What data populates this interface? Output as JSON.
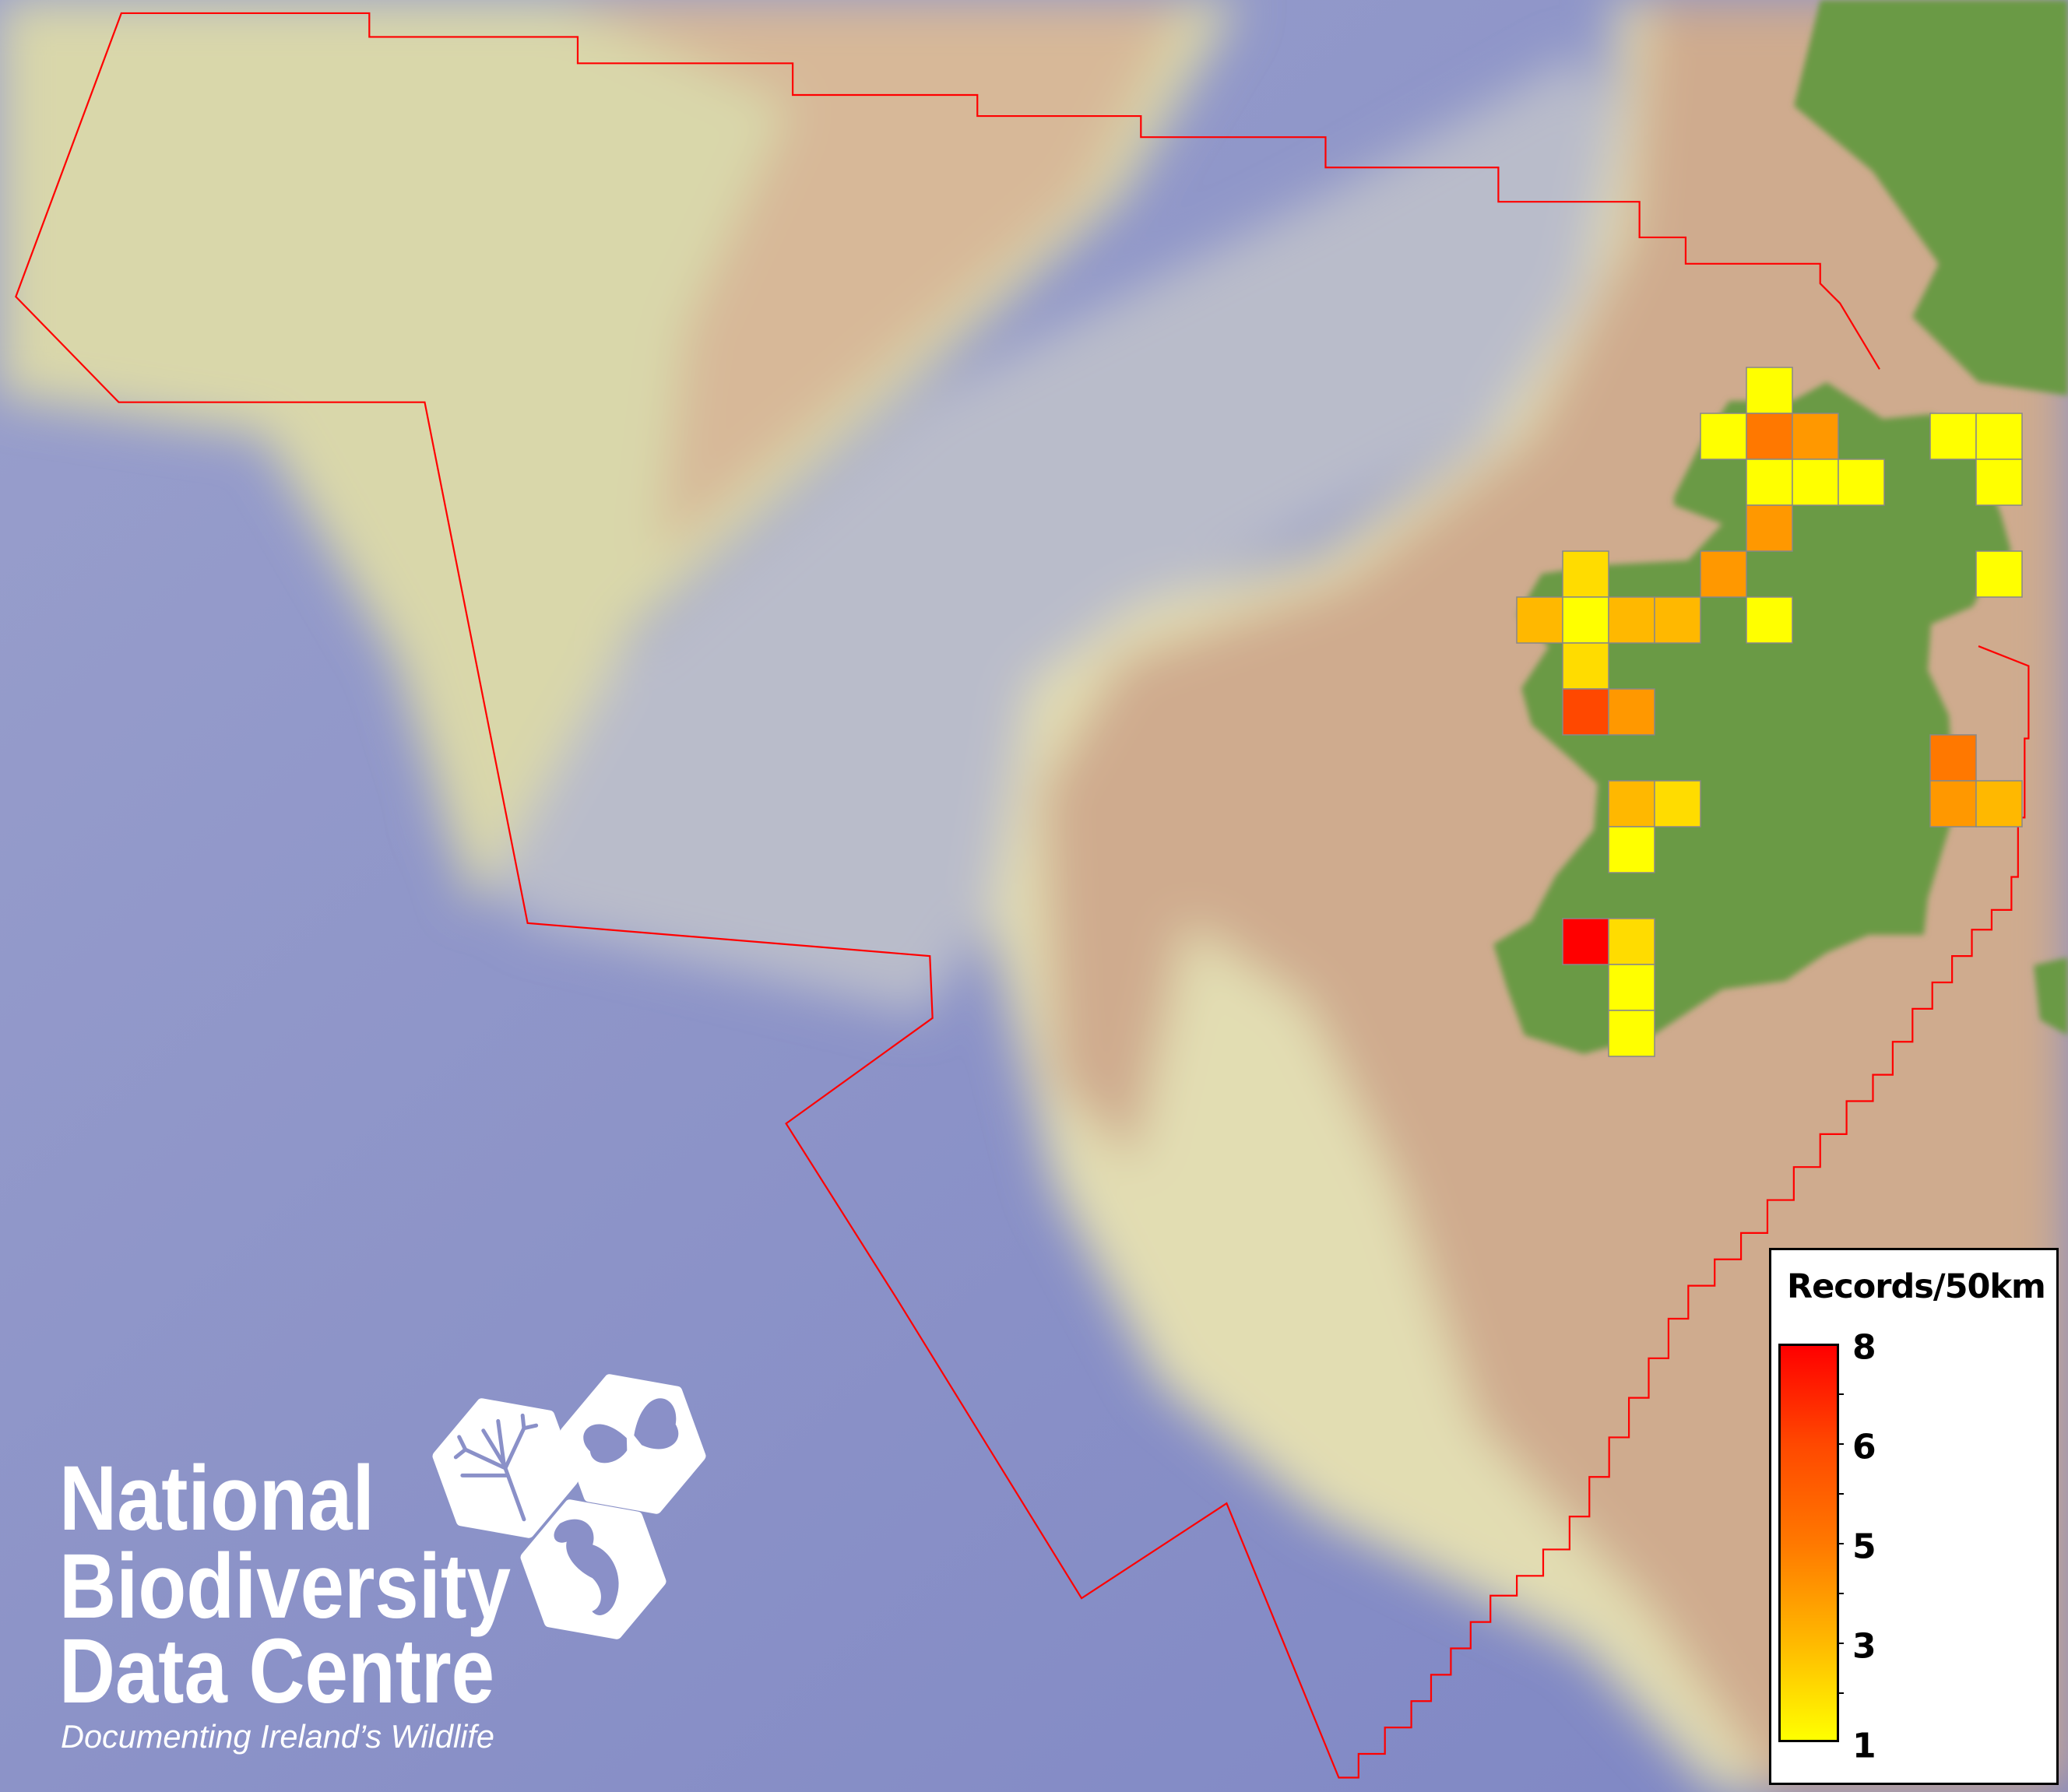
{
  "map": {
    "colors": {
      "deep_ocean": "#8a90c8",
      "trough": "#b9bcca",
      "bank": "#d9d7aa",
      "bank_core": "#d7b898",
      "slope": "#e2ddb2",
      "shelf": "#cfab8e",
      "land": "#6a9a45",
      "boundary": "#ff0000",
      "cell_stroke": "#888888"
    },
    "grid_cells": [
      {
        "col": 5,
        "row": 0,
        "value": 1
      },
      {
        "col": 4,
        "row": 1,
        "value": 1
      },
      {
        "col": 5,
        "row": 1,
        "value": 5
      },
      {
        "col": 6,
        "row": 1,
        "value": 4
      },
      {
        "col": 9,
        "row": 1,
        "value": 1
      },
      {
        "col": 10,
        "row": 1,
        "value": 1
      },
      {
        "col": 5,
        "row": 2,
        "value": 1
      },
      {
        "col": 6,
        "row": 2,
        "value": 1
      },
      {
        "col": 7,
        "row": 2,
        "value": 1
      },
      {
        "col": 10,
        "row": 2,
        "value": 1
      },
      {
        "col": 5,
        "row": 3,
        "value": 4
      },
      {
        "col": 1,
        "row": 4,
        "value": 2
      },
      {
        "col": 4,
        "row": 4,
        "value": 4
      },
      {
        "col": 10,
        "row": 4,
        "value": 1
      },
      {
        "col": 0,
        "row": 5,
        "value": 3
      },
      {
        "col": 1,
        "row": 5,
        "value": 1
      },
      {
        "col": 2,
        "row": 5,
        "value": 3
      },
      {
        "col": 3,
        "row": 5,
        "value": 3
      },
      {
        "col": 5,
        "row": 5,
        "value": 1
      },
      {
        "col": 1,
        "row": 6,
        "value": 2
      },
      {
        "col": 1,
        "row": 7,
        "value": 6
      },
      {
        "col": 2,
        "row": 7,
        "value": 4
      },
      {
        "col": 9,
        "row": 8,
        "value": 5
      },
      {
        "col": 2,
        "row": 9,
        "value": 3
      },
      {
        "col": 3,
        "row": 9,
        "value": 2
      },
      {
        "col": 9,
        "row": 9,
        "value": 4
      },
      {
        "col": 10,
        "row": 9,
        "value": 3
      },
      {
        "col": 2,
        "row": 10,
        "value": 1
      },
      {
        "col": 1,
        "row": 12,
        "value": 8
      },
      {
        "col": 2,
        "row": 12,
        "value": 2
      },
      {
        "col": 2,
        "row": 13,
        "value": 1
      },
      {
        "col": 2,
        "row": 14,
        "value": 1
      }
    ]
  },
  "legend": {
    "title": "Records/50km",
    "labels": [
      "8",
      "6",
      "5",
      "3",
      "1"
    ],
    "stops": [
      {
        "value": 1,
        "color": "#ffff00"
      },
      {
        "value": 3,
        "color": "#ffb800"
      },
      {
        "value": 5,
        "color": "#ff7800"
      },
      {
        "value": 6,
        "color": "#ff4800"
      },
      {
        "value": 8,
        "color": "#ff0000"
      }
    ]
  },
  "logo": {
    "line1": "National",
    "line2": "Biodiversity",
    "line3": "Data Centre",
    "tagline": "Documenting Ireland’s Wildlife",
    "color": "#ffffff"
  }
}
